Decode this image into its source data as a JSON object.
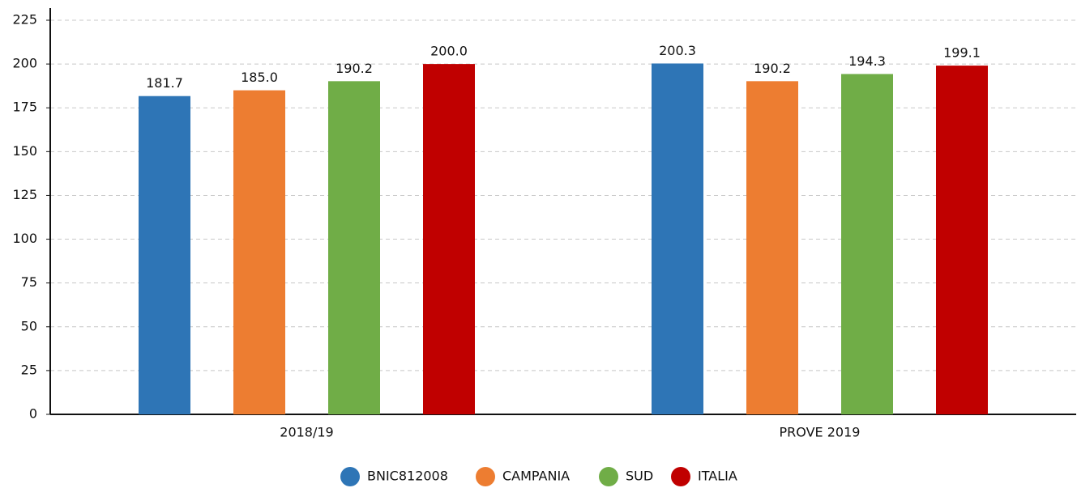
{
  "chart_data": {
    "type": "bar",
    "categories": [
      "2018/19",
      "PROVE 2019"
    ],
    "series": [
      {
        "name": "BNIC812008",
        "color": "#2e75b6",
        "values": [
          181.7,
          200.3
        ],
        "value_labels": [
          "181.7",
          "200.3"
        ]
      },
      {
        "name": "CAMPANIA",
        "color": "#ed7d31",
        "values": [
          185.0,
          190.2
        ],
        "value_labels": [
          "185.0",
          "190.2"
        ]
      },
      {
        "name": "SUD",
        "color": "#70ad47",
        "values": [
          190.2,
          194.3
        ],
        "value_labels": [
          "190.2",
          "194.3"
        ]
      },
      {
        "name": "ITALIA",
        "color": "#c00000",
        "values": [
          200.0,
          199.1
        ],
        "value_labels": [
          "200.0",
          "199.1"
        ]
      }
    ],
    "ylim": [
      0,
      225
    ],
    "yticks": [
      0,
      25,
      50,
      75,
      100,
      125,
      150,
      175,
      200,
      225
    ],
    "grid": true,
    "legend": "bottom"
  }
}
